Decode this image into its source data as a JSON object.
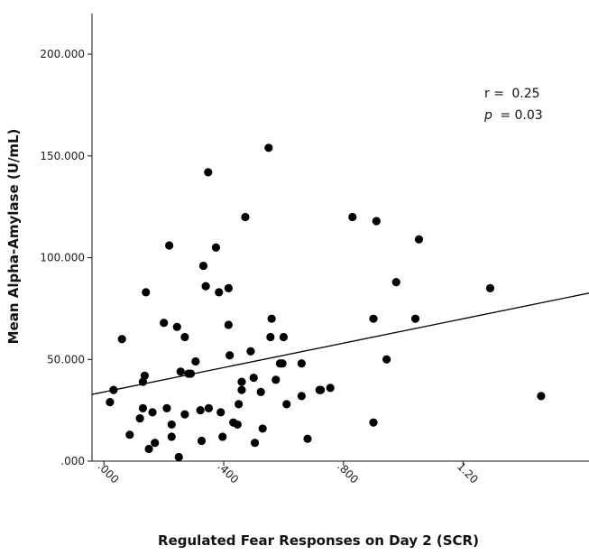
{
  "chart_data": {
    "type": "scatter",
    "title": "",
    "xlabel": "Regulated Fear Responses on Day 2 (SCR)",
    "ylabel": "Mean Alpha-Amylase (U/mL)",
    "xlim": [
      -0.04,
      1.62
    ],
    "ylim": [
      0,
      220
    ],
    "grid": false,
    "x_ticks": [
      {
        "value": 0.0,
        "label": ".000"
      },
      {
        "value": 0.4,
        "label": ".400"
      },
      {
        "value": 0.8,
        "label": ".800"
      },
      {
        "value": 1.2,
        "label": "1.20"
      }
    ],
    "y_ticks": [
      {
        "value": 0,
        "label": ".000"
      },
      {
        "value": 50,
        "label": "50.000"
      },
      {
        "value": 100,
        "label": "100.000"
      },
      {
        "value": 150,
        "label": "150.000"
      },
      {
        "value": 200,
        "label": "200.000"
      }
    ],
    "points": [
      [
        0.06,
        60
      ],
      [
        0.032,
        35
      ],
      [
        0.02,
        29
      ],
      [
        0.086,
        13
      ],
      [
        0.12,
        21
      ],
      [
        0.13,
        26
      ],
      [
        0.13,
        39
      ],
      [
        0.136,
        42
      ],
      [
        0.14,
        83
      ],
      [
        0.15,
        6
      ],
      [
        0.162,
        24
      ],
      [
        0.17,
        9
      ],
      [
        0.2,
        68
      ],
      [
        0.21,
        26
      ],
      [
        0.218,
        106
      ],
      [
        0.226,
        18
      ],
      [
        0.226,
        12
      ],
      [
        0.244,
        66
      ],
      [
        0.25,
        2
      ],
      [
        0.256,
        44
      ],
      [
        0.27,
        61
      ],
      [
        0.27,
        23
      ],
      [
        0.282,
        43
      ],
      [
        0.29,
        43
      ],
      [
        0.306,
        49
      ],
      [
        0.322,
        25
      ],
      [
        0.326,
        10
      ],
      [
        0.332,
        96
      ],
      [
        0.34,
        86
      ],
      [
        0.348,
        142
      ],
      [
        0.35,
        26
      ],
      [
        0.374,
        105
      ],
      [
        0.384,
        83
      ],
      [
        0.39,
        24
      ],
      [
        0.396,
        12
      ],
      [
        0.416,
        85
      ],
      [
        0.416,
        67
      ],
      [
        0.42,
        52
      ],
      [
        0.432,
        19
      ],
      [
        0.446,
        18
      ],
      [
        0.45,
        28
      ],
      [
        0.46,
        35
      ],
      [
        0.46,
        39
      ],
      [
        0.472,
        120
      ],
      [
        0.49,
        54
      ],
      [
        0.5,
        41
      ],
      [
        0.504,
        9
      ],
      [
        0.524,
        34
      ],
      [
        0.53,
        16
      ],
      [
        0.55,
        154
      ],
      [
        0.556,
        61
      ],
      [
        0.56,
        70
      ],
      [
        0.574,
        40
      ],
      [
        0.588,
        48
      ],
      [
        0.596,
        48
      ],
      [
        0.6,
        61
      ],
      [
        0.61,
        28
      ],
      [
        0.66,
        48
      ],
      [
        0.66,
        32
      ],
      [
        0.68,
        11
      ],
      [
        0.72,
        35
      ],
      [
        0.724,
        35
      ],
      [
        0.756,
        36
      ],
      [
        0.83,
        120
      ],
      [
        0.9,
        70
      ],
      [
        0.9,
        19
      ],
      [
        0.91,
        118
      ],
      [
        0.944,
        50
      ],
      [
        0.976,
        88
      ],
      [
        1.04,
        70
      ],
      [
        1.052,
        109
      ],
      [
        1.29,
        85
      ],
      [
        1.46,
        32
      ]
    ],
    "fit_line": {
      "intercept": 34.0,
      "slope": 30.0
    },
    "annotation": {
      "r_label": "r =",
      "r_value": "0.25",
      "p_label": "p",
      "p_value": "= 0.03"
    },
    "colors": {
      "point": "#000000",
      "line": "#000000",
      "axis": "#111111"
    }
  }
}
